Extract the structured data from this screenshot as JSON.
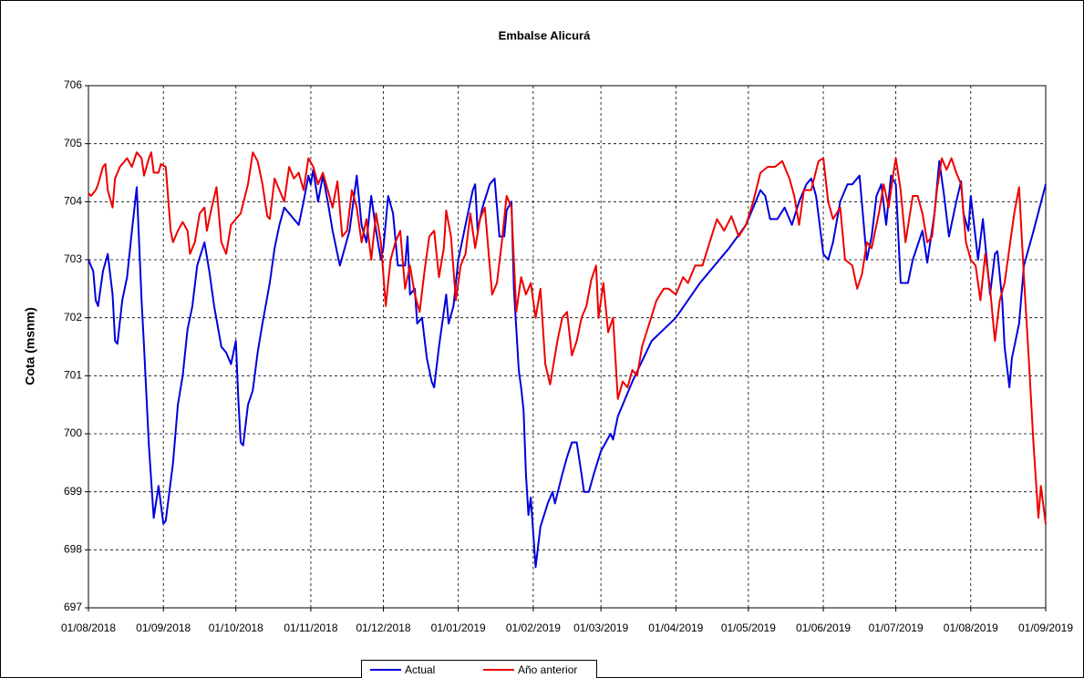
{
  "chart_data": {
    "type": "line",
    "title": "Embalse Alicurá",
    "ylabel": "Cota (msnm)",
    "xlim": [
      "2018-08-01",
      "2019-09-01"
    ],
    "xticks": [
      {
        "value": "2018-08-01",
        "label": "01/08/2018"
      },
      {
        "value": "2018-09-01",
        "label": "01/09/2018"
      },
      {
        "value": "2018-10-01",
        "label": "01/10/2018"
      },
      {
        "value": "2018-11-01",
        "label": "01/11/2018"
      },
      {
        "value": "2018-12-01",
        "label": "01/12/2018"
      },
      {
        "value": "2019-01-01",
        "label": "01/01/2019"
      },
      {
        "value": "2019-02-01",
        "label": "01/02/2019"
      },
      {
        "value": "2019-03-01",
        "label": "01/03/2019"
      },
      {
        "value": "2019-04-01",
        "label": "01/04/2019"
      },
      {
        "value": "2019-05-01",
        "label": "01/05/2019"
      },
      {
        "value": "2019-06-01",
        "label": "01/06/2019"
      },
      {
        "value": "2019-07-01",
        "label": "01/07/2019"
      },
      {
        "value": "2019-08-01",
        "label": "01/08/2019"
      },
      {
        "value": "2019-09-01",
        "label": "01/09/2019"
      }
    ],
    "ylim": [
      697,
      706
    ],
    "yticks": [
      697,
      698,
      699,
      700,
      701,
      702,
      703,
      704,
      705,
      706
    ],
    "grid": true,
    "legend": "bottom",
    "series": [
      {
        "name": "Actual",
        "color": "#0000dd",
        "x": [
          "2018-08-01",
          "2018-08-03",
          "2018-08-04",
          "2018-08-05",
          "2018-08-07",
          "2018-08-09",
          "2018-08-11",
          "2018-08-12",
          "2018-08-13",
          "2018-08-15",
          "2018-08-17",
          "2018-08-19",
          "2018-08-21",
          "2018-08-23",
          "2018-08-24",
          "2018-08-26",
          "2018-08-28",
          "2018-08-30",
          "2018-09-01",
          "2018-09-02",
          "2018-09-05",
          "2018-09-07",
          "2018-09-09",
          "2018-09-11",
          "2018-09-13",
          "2018-09-15",
          "2018-09-18",
          "2018-09-20",
          "2018-09-22",
          "2018-09-25",
          "2018-09-27",
          "2018-09-29",
          "2018-10-01",
          "2018-10-02",
          "2018-10-03",
          "2018-10-04",
          "2018-10-06",
          "2018-10-08",
          "2018-10-10",
          "2018-10-12",
          "2018-10-15",
          "2018-10-17",
          "2018-10-19",
          "2018-10-21",
          "2018-10-24",
          "2018-10-27",
          "2018-10-29",
          "2018-10-31",
          "2018-11-01",
          "2018-11-02",
          "2018-11-04",
          "2018-11-06",
          "2018-11-08",
          "2018-11-10",
          "2018-11-13",
          "2018-11-15",
          "2018-11-17",
          "2018-11-20",
          "2018-11-22",
          "2018-11-24",
          "2018-11-26",
          "2018-11-28",
          "2018-11-30",
          "2018-12-01",
          "2018-12-03",
          "2018-12-05",
          "2018-12-07",
          "2018-12-10",
          "2018-12-11",
          "2018-12-12",
          "2018-12-14",
          "2018-12-15",
          "2018-12-17",
          "2018-12-19",
          "2018-12-21",
          "2018-12-22",
          "2018-12-24",
          "2018-12-27",
          "2018-12-28",
          "2018-12-30",
          "2019-01-01",
          "2019-01-04",
          "2019-01-07",
          "2019-01-08",
          "2019-01-09",
          "2019-01-11",
          "2019-01-14",
          "2019-01-16",
          "2019-01-18",
          "2019-01-20",
          "2019-01-21",
          "2019-01-23",
          "2019-01-24",
          "2019-01-26",
          "2019-01-27",
          "2019-01-28",
          "2019-01-29",
          "2019-01-30",
          "2019-01-31",
          "2019-02-02",
          "2019-02-04",
          "2019-02-07",
          "2019-02-09",
          "2019-02-10",
          "2019-02-13",
          "2019-02-15",
          "2019-02-17",
          "2019-02-19",
          "2019-02-21",
          "2019-02-22",
          "2019-02-24",
          "2019-02-26",
          "2019-03-01",
          "2019-03-05",
          "2019-03-06",
          "2019-03-08",
          "2019-03-14",
          "2019-03-22",
          "2019-04-01",
          "2019-04-11",
          "2019-04-23",
          "2019-04-30",
          "2019-05-03",
          "2019-05-06",
          "2019-05-08",
          "2019-05-10",
          "2019-05-13",
          "2019-05-16",
          "2019-05-19",
          "2019-05-22",
          "2019-05-25",
          "2019-05-27",
          "2019-05-29",
          "2019-06-01",
          "2019-06-03",
          "2019-06-05",
          "2019-06-08",
          "2019-06-11",
          "2019-06-13",
          "2019-06-16",
          "2019-06-19",
          "2019-06-21",
          "2019-06-23",
          "2019-06-25",
          "2019-06-27",
          "2019-06-29",
          "2019-07-01",
          "2019-07-03",
          "2019-07-06",
          "2019-07-08",
          "2019-07-12",
          "2019-07-14",
          "2019-07-17",
          "2019-07-19",
          "2019-07-21",
          "2019-07-23",
          "2019-07-26",
          "2019-07-28",
          "2019-07-29",
          "2019-07-31",
          "2019-08-01",
          "2019-08-04",
          "2019-08-06",
          "2019-08-09",
          "2019-08-11",
          "2019-08-12",
          "2019-08-14",
          "2019-08-15",
          "2019-08-17",
          "2019-08-18",
          "2019-08-21",
          "2019-08-23",
          "2019-08-27",
          "2019-09-01"
        ],
        "values": [
          703.0,
          702.8,
          702.3,
          702.2,
          702.8,
          703.1,
          702.4,
          701.6,
          701.55,
          702.3,
          702.7,
          703.5,
          704.25,
          702.3,
          701.5,
          699.8,
          698.55,
          699.1,
          698.45,
          698.5,
          699.5,
          700.5,
          701.0,
          701.8,
          702.2,
          702.9,
          703.3,
          702.8,
          702.2,
          701.5,
          701.4,
          701.2,
          701.6,
          700.6,
          699.85,
          699.8,
          700.5,
          700.75,
          701.4,
          701.9,
          702.6,
          703.2,
          703.6,
          703.9,
          703.75,
          703.6,
          704.0,
          704.45,
          704.3,
          704.55,
          704.0,
          704.45,
          704.0,
          703.5,
          702.9,
          703.2,
          703.5,
          704.45,
          703.6,
          703.3,
          704.1,
          703.5,
          703.0,
          703.2,
          704.1,
          703.8,
          702.9,
          702.9,
          703.4,
          702.4,
          702.5,
          701.9,
          702.0,
          701.3,
          700.9,
          700.8,
          701.5,
          702.4,
          701.9,
          702.2,
          703.0,
          703.6,
          704.2,
          704.3,
          703.5,
          703.9,
          704.3,
          704.4,
          703.4,
          703.4,
          703.85,
          704.0,
          702.5,
          701.1,
          700.8,
          700.4,
          699.3,
          698.6,
          698.9,
          697.7,
          698.4,
          698.8,
          699.0,
          698.8,
          699.3,
          699.6,
          699.85,
          699.85,
          699.3,
          699.0,
          699.0,
          699.3,
          699.7,
          700.0,
          699.9,
          700.3,
          700.9,
          701.6,
          702.0,
          702.6,
          703.2,
          703.6,
          703.9,
          704.2,
          704.1,
          703.7,
          703.7,
          703.9,
          703.6,
          704.0,
          704.3,
          704.4,
          704.1,
          703.1,
          703.0,
          703.3,
          704.0,
          704.3,
          704.3,
          704.45,
          703.0,
          703.4,
          704.1,
          704.3,
          703.6,
          704.45,
          704.3,
          702.6,
          702.6,
          703.0,
          703.5,
          702.95,
          703.8,
          704.7,
          704.1,
          703.4,
          704.0,
          704.35,
          703.8,
          703.5,
          704.1,
          703.0,
          703.7,
          702.4,
          703.1,
          703.15,
          702.3,
          701.5,
          700.8,
          701.3,
          701.9,
          702.9,
          703.5,
          704.3
        ]
      },
      {
        "name": "Año anterior",
        "color": "#ee0000",
        "x": [
          "2018-08-01",
          "2018-08-02",
          "2018-08-04",
          "2018-08-05",
          "2018-08-07",
          "2018-08-08",
          "2018-08-09",
          "2018-08-11",
          "2018-08-12",
          "2018-08-14",
          "2018-08-17",
          "2018-08-19",
          "2018-08-21",
          "2018-08-23",
          "2018-08-24",
          "2018-08-26",
          "2018-08-27",
          "2018-08-28",
          "2018-08-30",
          "2018-08-31",
          "2018-09-02",
          "2018-09-04",
          "2018-09-05",
          "2018-09-07",
          "2018-09-09",
          "2018-09-11",
          "2018-09-12",
          "2018-09-14",
          "2018-09-16",
          "2018-09-18",
          "2018-09-19",
          "2018-09-21",
          "2018-09-23",
          "2018-09-25",
          "2018-09-27",
          "2018-09-29",
          "2018-10-01",
          "2018-10-03",
          "2018-10-06",
          "2018-10-08",
          "2018-10-10",
          "2018-10-12",
          "2018-10-14",
          "2018-10-15",
          "2018-10-17",
          "2018-10-19",
          "2018-10-21",
          "2018-10-23",
          "2018-10-25",
          "2018-10-27",
          "2018-10-29",
          "2018-10-31",
          "2018-11-02",
          "2018-11-04",
          "2018-11-06",
          "2018-11-08",
          "2018-11-10",
          "2018-11-12",
          "2018-11-14",
          "2018-11-16",
          "2018-11-18",
          "2018-11-20",
          "2018-11-22",
          "2018-11-24",
          "2018-11-26",
          "2018-11-28",
          "2018-11-30",
          "2018-12-02",
          "2018-12-04",
          "2018-12-06",
          "2018-12-08",
          "2018-12-10",
          "2018-12-12",
          "2018-12-14",
          "2018-12-16",
          "2018-12-18",
          "2018-12-20",
          "2018-12-22",
          "2018-12-24",
          "2018-12-26",
          "2018-12-27",
          "2018-12-29",
          "2018-12-31",
          "2019-01-02",
          "2019-01-04",
          "2019-01-06",
          "2019-01-08",
          "2019-01-10",
          "2019-01-12",
          "2019-01-15",
          "2019-01-17",
          "2019-01-19",
          "2019-01-21",
          "2019-01-23",
          "2019-01-25",
          "2019-01-27",
          "2019-01-29",
          "2019-01-31",
          "2019-02-02",
          "2019-02-04",
          "2019-02-06",
          "2019-02-08",
          "2019-02-11",
          "2019-02-13",
          "2019-02-15",
          "2019-02-17",
          "2019-02-19",
          "2019-02-21",
          "2019-02-23",
          "2019-02-25",
          "2019-02-27",
          "2019-02-28",
          "2019-03-02",
          "2019-03-04",
          "2019-03-06",
          "2019-03-08",
          "2019-03-10",
          "2019-03-12",
          "2019-03-14",
          "2019-03-16",
          "2019-03-18",
          "2019-03-21",
          "2019-03-24",
          "2019-03-27",
          "2019-03-29",
          "2019-04-01",
          "2019-04-04",
          "2019-04-06",
          "2019-04-09",
          "2019-04-12",
          "2019-04-15",
          "2019-04-18",
          "2019-04-21",
          "2019-04-24",
          "2019-04-27",
          "2019-04-30",
          "2019-05-03",
          "2019-05-06",
          "2019-05-09",
          "2019-05-12",
          "2019-05-15",
          "2019-05-18",
          "2019-05-20",
          "2019-05-22",
          "2019-05-24",
          "2019-05-27",
          "2019-05-30",
          "2019-06-01",
          "2019-06-03",
          "2019-06-05",
          "2019-06-08",
          "2019-06-10",
          "2019-06-13",
          "2019-06-15",
          "2019-06-17",
          "2019-06-19",
          "2019-06-21",
          "2019-06-24",
          "2019-06-26",
          "2019-06-28",
          "2019-06-30",
          "2019-07-01",
          "2019-07-03",
          "2019-07-05",
          "2019-07-08",
          "2019-07-10",
          "2019-07-12",
          "2019-07-14",
          "2019-07-16",
          "2019-07-18",
          "2019-07-20",
          "2019-07-22",
          "2019-07-24",
          "2019-07-26",
          "2019-07-28",
          "2019-07-30",
          "2019-08-01",
          "2019-08-03",
          "2019-08-05",
          "2019-08-07",
          "2019-08-09",
          "2019-08-11",
          "2019-08-13",
          "2019-08-15",
          "2019-08-17",
          "2019-08-19",
          "2019-08-21",
          "2019-08-23",
          "2019-08-25",
          "2019-08-27",
          "2019-08-29",
          "2019-08-30",
          "2019-09-01"
        ],
        "values": [
          704.15,
          704.1,
          704.2,
          704.3,
          704.6,
          704.65,
          704.2,
          703.9,
          704.4,
          704.6,
          704.75,
          704.6,
          704.85,
          704.75,
          704.45,
          704.75,
          704.85,
          704.5,
          704.5,
          704.65,
          704.6,
          703.5,
          703.3,
          703.5,
          703.65,
          703.5,
          703.1,
          703.3,
          703.8,
          703.9,
          703.5,
          703.9,
          704.25,
          703.3,
          703.1,
          703.6,
          703.7,
          703.8,
          704.3,
          704.85,
          704.7,
          704.3,
          703.75,
          703.7,
          704.4,
          704.2,
          704.0,
          704.6,
          704.4,
          704.5,
          704.2,
          704.75,
          704.6,
          704.3,
          704.5,
          704.2,
          703.9,
          704.35,
          703.4,
          703.5,
          704.2,
          703.9,
          703.3,
          703.7,
          703.0,
          703.8,
          703.3,
          702.2,
          703.0,
          703.3,
          703.5,
          702.5,
          702.9,
          702.4,
          702.1,
          702.8,
          703.4,
          703.5,
          702.7,
          703.2,
          703.85,
          703.4,
          702.3,
          702.9,
          703.1,
          703.8,
          703.2,
          703.7,
          703.9,
          702.4,
          702.6,
          703.3,
          704.1,
          703.9,
          702.1,
          702.7,
          702.4,
          702.6,
          702.0,
          702.5,
          701.2,
          700.85,
          701.6,
          702.0,
          702.1,
          701.35,
          701.6,
          702.0,
          702.2,
          702.65,
          702.9,
          702.0,
          702.6,
          701.75,
          702.0,
          700.6,
          700.9,
          700.8,
          701.1,
          701.0,
          701.5,
          701.9,
          702.3,
          702.5,
          702.5,
          702.4,
          702.7,
          702.6,
          702.9,
          702.9,
          703.3,
          703.7,
          703.5,
          703.75,
          703.4,
          703.6,
          704.0,
          704.5,
          704.6,
          704.6,
          704.7,
          704.4,
          704.1,
          703.6,
          704.2,
          704.2,
          704.7,
          704.75,
          704.0,
          703.7,
          703.9,
          703.0,
          702.9,
          702.5,
          702.75,
          703.3,
          703.2,
          703.8,
          704.3,
          703.9,
          704.5,
          704.75,
          704.2,
          703.3,
          704.1,
          704.1,
          703.8,
          703.3,
          703.4,
          704.2,
          704.75,
          704.55,
          704.75,
          704.5,
          704.3,
          703.3,
          703.0,
          702.9,
          702.3,
          703.1,
          702.5,
          701.6,
          702.3,
          702.6,
          703.2,
          703.8,
          704.25,
          702.7,
          701.3,
          699.8,
          698.55,
          699.1,
          698.45
        ]
      }
    ]
  }
}
